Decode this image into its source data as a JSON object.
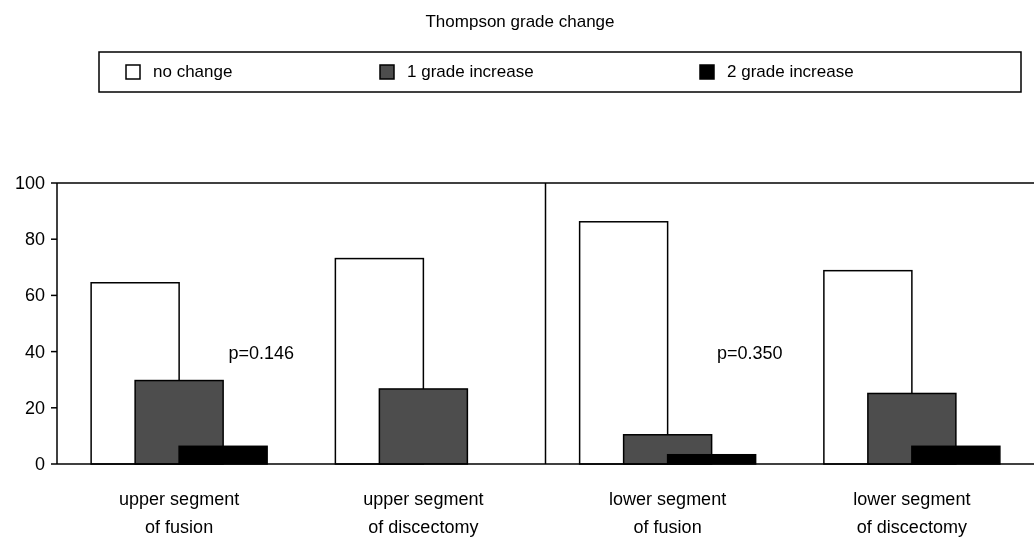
{
  "chart_data": {
    "type": "bar",
    "title": "Thompson grade change",
    "categories": [
      "upper segment of fusion",
      "upper segment of discectomy",
      "lower segment of fusion",
      "lower segment of discectomy"
    ],
    "series": [
      {
        "name": "no change",
        "color": "#ffffff",
        "values": [
          64.5,
          73.1,
          86.2,
          68.8
        ]
      },
      {
        "name": "1 grade increase",
        "color": "#4d4d4d",
        "values": [
          29.7,
          26.7,
          10.4,
          25.1
        ]
      },
      {
        "name": "2 grade increase",
        "color": "#000000",
        "values": [
          6.3,
          0,
          3.3,
          6.3
        ]
      }
    ],
    "ylim": [
      0,
      100
    ],
    "yticks": [
      0,
      20,
      40,
      60,
      80,
      100
    ],
    "grid": false,
    "legend": "top",
    "annotations": [
      "p=0.146",
      "p=0.350"
    ]
  }
}
